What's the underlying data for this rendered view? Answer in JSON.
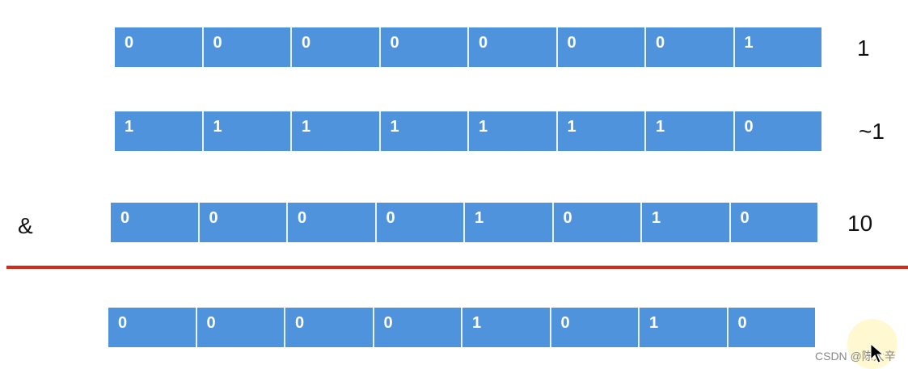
{
  "rows": [
    {
      "bits": [
        "0",
        "0",
        "0",
        "0",
        "0",
        "0",
        "0",
        "1"
      ],
      "label": "1"
    },
    {
      "bits": [
        "1",
        "1",
        "1",
        "1",
        "1",
        "1",
        "1",
        "0"
      ],
      "label": "~1"
    },
    {
      "bits": [
        "0",
        "0",
        "0",
        "0",
        "1",
        "0",
        "1",
        "0"
      ],
      "label": "10"
    },
    {
      "bits": [
        "0",
        "0",
        "0",
        "0",
        "1",
        "0",
        "1",
        "0"
      ],
      "label": ""
    }
  ],
  "operator": "&",
  "watermark": "CSDN @陈大辛",
  "colors": {
    "cell": "#4f93dc",
    "divider": "#d42a17"
  }
}
